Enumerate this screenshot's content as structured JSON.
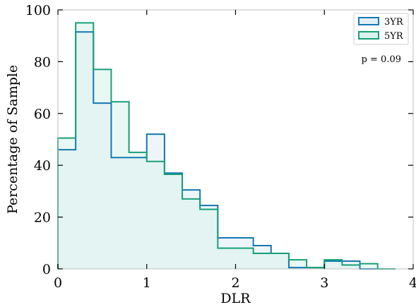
{
  "chart_data": {
    "type": "histogram",
    "xlabel": "DLR",
    "ylabel": "Percentage of Sample",
    "xlim": [
      0,
      4
    ],
    "ylim": [
      0,
      100
    ],
    "xticks": [
      "0",
      "1",
      "2",
      "3",
      "4"
    ],
    "yticks": [
      "0",
      "20",
      "40",
      "60",
      "80",
      "100"
    ],
    "bin_edges": [
      0,
      0.2,
      0.4,
      0.6,
      0.8,
      1.0,
      1.2,
      1.4,
      1.6,
      1.8,
      2.0,
      2.2,
      2.4,
      2.6,
      2.8,
      3.0,
      3.2,
      3.4,
      3.6,
      3.8
    ],
    "legend_position": "upper right",
    "series": [
      {
        "name": "3YR",
        "edge_color": "#1478b4",
        "fill_color": "#e2eff7",
        "values": [
          46,
          91.5,
          64,
          43,
          43,
          52,
          37,
          30.5,
          24.5,
          12,
          12,
          9,
          6,
          0.5,
          0.5,
          3,
          3,
          0,
          0
        ]
      },
      {
        "name": "5YR",
        "edge_color": "#16a078",
        "fill_color": "#dcf3ec",
        "values": [
          50.5,
          95,
          77,
          64.5,
          45,
          41.5,
          36.5,
          27,
          23,
          8,
          8,
          6,
          6,
          3.5,
          0.5,
          3.5,
          1.5,
          2,
          0
        ]
      }
    ],
    "annotation": "p = 0.09"
  }
}
